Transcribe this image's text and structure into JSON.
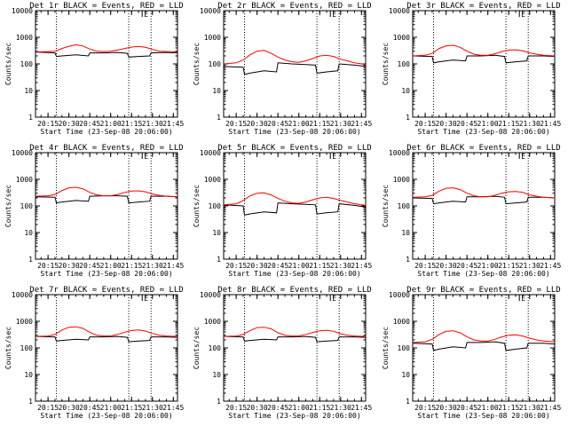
{
  "chart_data": [
    {
      "type": "line",
      "title": "Det 1r BLACK = Events, RED = LLD",
      "xlabel": "Start Time (23-Sep-08 20:06:00)",
      "ylabel": "Counts/sec",
      "yscale": "log",
      "ylim": [
        1,
        10000
      ],
      "y_ticks": [
        "1",
        "10",
        "100",
        "1000",
        "10000"
      ],
      "x_ticks": [
        "20:15",
        "20:30",
        "20:45",
        "21:00",
        "21:15",
        "21:30",
        "21:45"
      ],
      "marker_label": "E",
      "grid": false,
      "series": [
        {
          "name": "BLACK = Events",
          "color": "#000000",
          "x": [
            "20:06",
            "20:20",
            "20:21",
            "20:25",
            "20:35",
            "20:44",
            "20:45",
            "20:55",
            "21:05",
            "21:12",
            "21:13",
            "21:20",
            "21:28",
            "21:29",
            "21:40",
            "21:48"
          ],
          "y": [
            280,
            260,
            190,
            200,
            220,
            200,
            260,
            260,
            270,
            250,
            180,
            190,
            200,
            260,
            270,
            260
          ]
        },
        {
          "name": "RED = LLD",
          "color": "#ff0000",
          "x": [
            "20:06",
            "20:15",
            "20:20",
            "20:25",
            "20:30",
            "20:35",
            "20:40",
            "20:45",
            "20:50",
            "20:55",
            "21:00",
            "21:05",
            "21:10",
            "21:15",
            "21:20",
            "21:25",
            "21:30",
            "21:35",
            "21:40",
            "21:48"
          ],
          "y": [
            280,
            290,
            300,
            380,
            460,
            520,
            470,
            360,
            300,
            290,
            300,
            330,
            380,
            430,
            450,
            420,
            350,
            300,
            290,
            280
          ]
        }
      ]
    },
    {
      "type": "line",
      "title": "Det 2r BLACK = Events, RED = LLD",
      "xlabel": "Start Time (23-Sep-08 20:06:00)",
      "ylabel": "Counts/sec",
      "yscale": "log",
      "ylim": [
        1,
        10000
      ],
      "y_ticks": [
        "1",
        "10",
        "100",
        "1000",
        "10000"
      ],
      "x_ticks": [
        "20:15",
        "20:30",
        "20:45",
        "21:00",
        "21:15",
        "21:30",
        "21:45"
      ],
      "marker_label": "E",
      "grid": false,
      "series": [
        {
          "name": "BLACK = Events",
          "color": "#000000",
          "x": [
            "20:06",
            "20:20",
            "20:21",
            "20:25",
            "20:35",
            "20:44",
            "20:45",
            "20:55",
            "21:05",
            "21:12",
            "21:13",
            "21:20",
            "21:28",
            "21:29",
            "21:40",
            "21:48"
          ],
          "y": [
            80,
            75,
            40,
            45,
            55,
            50,
            110,
            100,
            95,
            90,
            45,
            50,
            55,
            100,
            90,
            80
          ]
        },
        {
          "name": "RED = LLD",
          "color": "#ff0000",
          "x": [
            "20:06",
            "20:15",
            "20:20",
            "20:25",
            "20:30",
            "20:35",
            "20:40",
            "20:45",
            "20:50",
            "20:55",
            "21:00",
            "21:05",
            "21:10",
            "21:15",
            "21:20",
            "21:25",
            "21:30",
            "21:35",
            "21:40",
            "21:48"
          ],
          "y": [
            100,
            110,
            140,
            220,
            300,
            320,
            250,
            180,
            140,
            120,
            115,
            130,
            160,
            200,
            210,
            190,
            150,
            130,
            110,
            95
          ]
        }
      ]
    },
    {
      "type": "line",
      "title": "Det 3r BLACK = Events, RED = LLD",
      "xlabel": "Start Time (23-Sep-08 20:06:00)",
      "ylabel": "Counts/sec",
      "yscale": "log",
      "ylim": [
        1,
        10000
      ],
      "y_ticks": [
        "1",
        "10",
        "100",
        "1000",
        "10000"
      ],
      "x_ticks": [
        "20:15",
        "20:30",
        "20:45",
        "21:00",
        "21:15",
        "21:30",
        "21:45"
      ],
      "marker_label": "E",
      "grid": false,
      "series": [
        {
          "name": "BLACK = Events",
          "color": "#000000",
          "x": [
            "20:06",
            "20:20",
            "20:21",
            "20:25",
            "20:35",
            "20:44",
            "20:45",
            "20:55",
            "21:05",
            "21:12",
            "21:13",
            "21:20",
            "21:28",
            "21:29",
            "21:40",
            "21:48"
          ],
          "y": [
            200,
            190,
            110,
            120,
            140,
            130,
            200,
            200,
            210,
            190,
            110,
            120,
            130,
            200,
            200,
            190
          ]
        },
        {
          "name": "RED = LLD",
          "color": "#ff0000",
          "x": [
            "20:06",
            "20:15",
            "20:20",
            "20:25",
            "20:30",
            "20:35",
            "20:40",
            "20:45",
            "20:50",
            "20:55",
            "21:00",
            "21:05",
            "21:10",
            "21:15",
            "21:20",
            "21:25",
            "21:30",
            "21:35",
            "21:40",
            "21:48"
          ],
          "y": [
            200,
            210,
            250,
            380,
            480,
            500,
            420,
            300,
            230,
            210,
            210,
            240,
            290,
            330,
            340,
            310,
            260,
            230,
            210,
            200
          ]
        }
      ]
    },
    {
      "type": "line",
      "title": "Det 4r BLACK = Events, RED = LLD",
      "xlabel": "Start Time (23-Sep-08 20:06:00)",
      "ylabel": "Counts/sec",
      "yscale": "log",
      "ylim": [
        1,
        10000
      ],
      "y_ticks": [
        "1",
        "10",
        "100",
        "1000",
        "10000"
      ],
      "x_ticks": [
        "20:15",
        "20:30",
        "20:45",
        "21:00",
        "21:15",
        "21:30",
        "21:45"
      ],
      "marker_label": "E",
      "grid": false,
      "series": [
        {
          "name": "BLACK = Events",
          "color": "#000000",
          "x": [
            "20:06",
            "20:20",
            "20:21",
            "20:25",
            "20:35",
            "20:44",
            "20:45",
            "20:55",
            "21:05",
            "21:12",
            "21:13",
            "21:20",
            "21:28",
            "21:29",
            "21:40",
            "21:48"
          ],
          "y": [
            220,
            210,
            130,
            140,
            160,
            150,
            230,
            240,
            240,
            230,
            130,
            140,
            150,
            230,
            230,
            220
          ]
        },
        {
          "name": "RED = LLD",
          "color": "#ff0000",
          "x": [
            "20:06",
            "20:15",
            "20:20",
            "20:25",
            "20:30",
            "20:35",
            "20:40",
            "20:45",
            "20:50",
            "20:55",
            "21:00",
            "21:05",
            "21:10",
            "21:15",
            "21:20",
            "21:25",
            "21:30",
            "21:35",
            "21:40",
            "21:48"
          ],
          "y": [
            230,
            240,
            270,
            380,
            480,
            500,
            440,
            320,
            260,
            240,
            240,
            270,
            320,
            360,
            370,
            340,
            280,
            250,
            230,
            220
          ]
        }
      ]
    },
    {
      "type": "line",
      "title": "Det 5r BLACK = Events, RED = LLD",
      "xlabel": "Start Time (23-Sep-08 20:06:00)",
      "ylabel": "Counts/sec",
      "yscale": "log",
      "ylim": [
        1,
        10000
      ],
      "y_ticks": [
        "1",
        "10",
        "100",
        "1000",
        "10000"
      ],
      "x_ticks": [
        "20:15",
        "20:30",
        "20:45",
        "21:00",
        "21:15",
        "21:30",
        "21:45"
      ],
      "marker_label": "E",
      "grid": false,
      "series": [
        {
          "name": "BLACK = Events",
          "color": "#000000",
          "x": [
            "20:06",
            "20:20",
            "20:21",
            "20:25",
            "20:35",
            "20:44",
            "20:45",
            "20:55",
            "21:05",
            "21:12",
            "21:13",
            "21:20",
            "21:28",
            "21:29",
            "21:40",
            "21:48"
          ],
          "y": [
            110,
            100,
            45,
            50,
            60,
            55,
            130,
            120,
            115,
            110,
            50,
            55,
            60,
            120,
            105,
            90
          ]
        },
        {
          "name": "RED = LLD",
          "color": "#ff0000",
          "x": [
            "20:06",
            "20:15",
            "20:20",
            "20:25",
            "20:30",
            "20:35",
            "20:40",
            "20:45",
            "20:50",
            "20:55",
            "21:00",
            "21:05",
            "21:10",
            "21:15",
            "21:20",
            "21:25",
            "21:30",
            "21:35",
            "21:40",
            "21:48"
          ],
          "y": [
            110,
            120,
            160,
            240,
            300,
            310,
            260,
            190,
            150,
            130,
            125,
            140,
            170,
            200,
            210,
            190,
            160,
            140,
            120,
            105
          ]
        }
      ]
    },
    {
      "type": "line",
      "title": "Det 6r BLACK = Events, RED = LLD",
      "xlabel": "Start Time (23-Sep-08 20:06:00)",
      "ylabel": "Counts/sec",
      "yscale": "log",
      "ylim": [
        1,
        10000
      ],
      "y_ticks": [
        "1",
        "10",
        "100",
        "1000",
        "10000"
      ],
      "x_ticks": [
        "20:15",
        "20:30",
        "20:45",
        "21:00",
        "21:15",
        "21:30",
        "21:45"
      ],
      "marker_label": "E",
      "grid": false,
      "series": [
        {
          "name": "BLACK = Events",
          "color": "#000000",
          "x": [
            "20:06",
            "20:20",
            "20:21",
            "20:25",
            "20:35",
            "20:44",
            "20:45",
            "20:55",
            "21:05",
            "21:12",
            "21:13",
            "21:20",
            "21:28",
            "21:29",
            "21:40",
            "21:48"
          ],
          "y": [
            200,
            190,
            120,
            130,
            150,
            140,
            220,
            220,
            230,
            210,
            120,
            130,
            140,
            210,
            210,
            200
          ]
        },
        {
          "name": "RED = LLD",
          "color": "#ff0000",
          "x": [
            "20:06",
            "20:15",
            "20:20",
            "20:25",
            "20:30",
            "20:35",
            "20:40",
            "20:45",
            "20:50",
            "20:55",
            "21:00",
            "21:05",
            "21:10",
            "21:15",
            "21:20",
            "21:25",
            "21:30",
            "21:35",
            "21:40",
            "21:48"
          ],
          "y": [
            210,
            220,
            250,
            360,
            460,
            480,
            410,
            300,
            240,
            220,
            220,
            250,
            300,
            340,
            350,
            320,
            260,
            230,
            210,
            200
          ]
        }
      ]
    },
    {
      "type": "line",
      "title": "Det 7r BLACK = Events, RED = LLD",
      "xlabel": "Start Time (23-Sep-08 20:06:00)",
      "ylabel": "Counts/sec",
      "yscale": "log",
      "ylim": [
        1,
        10000
      ],
      "y_ticks": [
        "1",
        "10",
        "100",
        "1000",
        "10000"
      ],
      "x_ticks": [
        "20:15",
        "20:30",
        "20:45",
        "21:00",
        "21:15",
        "21:30",
        "21:45"
      ],
      "marker_label": "E",
      "grid": false,
      "series": [
        {
          "name": "BLACK = Events",
          "color": "#000000",
          "x": [
            "20:06",
            "20:20",
            "20:21",
            "20:25",
            "20:35",
            "20:44",
            "20:45",
            "20:55",
            "21:05",
            "21:12",
            "21:13",
            "21:20",
            "21:28",
            "21:29",
            "21:40",
            "21:48"
          ],
          "y": [
            270,
            260,
            180,
            190,
            210,
            200,
            260,
            260,
            270,
            250,
            170,
            180,
            190,
            260,
            260,
            250
          ]
        },
        {
          "name": "RED = LLD",
          "color": "#ff0000",
          "x": [
            "20:06",
            "20:15",
            "20:20",
            "20:25",
            "20:30",
            "20:35",
            "20:40",
            "20:45",
            "20:50",
            "20:55",
            "21:00",
            "21:05",
            "21:10",
            "21:15",
            "21:20",
            "21:25",
            "21:30",
            "21:35",
            "21:40",
            "21:48"
          ],
          "y": [
            270,
            280,
            320,
            470,
            600,
            620,
            540,
            380,
            300,
            280,
            280,
            320,
            390,
            450,
            470,
            430,
            350,
            300,
            280,
            270
          ]
        }
      ]
    },
    {
      "type": "line",
      "title": "Det 8r BLACK = Events, RED = LLD",
      "xlabel": "Start Time (23-Sep-08 20:06:00)",
      "ylabel": "Counts/sec",
      "yscale": "log",
      "ylim": [
        1,
        10000
      ],
      "y_ticks": [
        "1",
        "10",
        "100",
        "1000",
        "10000"
      ],
      "x_ticks": [
        "20:15",
        "20:30",
        "20:45",
        "21:00",
        "21:15",
        "21:30",
        "21:45"
      ],
      "marker_label": "E",
      "grid": false,
      "series": [
        {
          "name": "BLACK = Events",
          "color": "#000000",
          "x": [
            "20:06",
            "20:20",
            "20:21",
            "20:25",
            "20:35",
            "20:44",
            "20:45",
            "20:55",
            "21:05",
            "21:12",
            "21:13",
            "21:20",
            "21:28",
            "21:29",
            "21:40",
            "21:48"
          ],
          "y": [
            270,
            260,
            180,
            190,
            210,
            200,
            260,
            260,
            270,
            250,
            170,
            180,
            190,
            260,
            260,
            250
          ]
        },
        {
          "name": "RED = LLD",
          "color": "#ff0000",
          "x": [
            "20:06",
            "20:15",
            "20:20",
            "20:25",
            "20:30",
            "20:35",
            "20:40",
            "20:45",
            "20:50",
            "20:55",
            "21:00",
            "21:05",
            "21:10",
            "21:15",
            "21:20",
            "21:25",
            "21:30",
            "21:35",
            "21:40",
            "21:48"
          ],
          "y": [
            270,
            280,
            320,
            450,
            580,
            600,
            520,
            370,
            300,
            280,
            280,
            320,
            380,
            440,
            460,
            420,
            340,
            300,
            280,
            270
          ]
        }
      ]
    },
    {
      "type": "line",
      "title": "Det 9r BLACK = Events, RED = LLD",
      "xlabel": "Start Time (23-Sep-08 20:06:00)",
      "ylabel": "Counts/sec",
      "yscale": "log",
      "ylim": [
        1,
        10000
      ],
      "y_ticks": [
        "1",
        "10",
        "100",
        "1000",
        "10000"
      ],
      "x_ticks": [
        "20:15",
        "20:30",
        "20:45",
        "21:00",
        "21:15",
        "21:30",
        "21:45"
      ],
      "marker_label": "E",
      "grid": false,
      "series": [
        {
          "name": "BLACK = Events",
          "color": "#000000",
          "x": [
            "20:06",
            "20:20",
            "20:21",
            "20:25",
            "20:35",
            "20:44",
            "20:45",
            "20:55",
            "21:05",
            "21:12",
            "21:13",
            "21:20",
            "21:28",
            "21:29",
            "21:40",
            "21:48"
          ],
          "y": [
            150,
            140,
            80,
            90,
            110,
            100,
            160,
            160,
            170,
            150,
            80,
            90,
            100,
            150,
            150,
            140
          ]
        },
        {
          "name": "RED = LLD",
          "color": "#ff0000",
          "x": [
            "20:06",
            "20:15",
            "20:20",
            "20:25",
            "20:30",
            "20:35",
            "20:40",
            "20:45",
            "20:50",
            "20:55",
            "21:00",
            "21:05",
            "21:10",
            "21:15",
            "21:20",
            "21:25",
            "21:30",
            "21:35",
            "21:40",
            "21:48"
          ],
          "y": [
            160,
            170,
            210,
            320,
            420,
            440,
            370,
            260,
            200,
            180,
            180,
            210,
            260,
            300,
            310,
            280,
            230,
            200,
            180,
            170
          ]
        }
      ]
    }
  ]
}
